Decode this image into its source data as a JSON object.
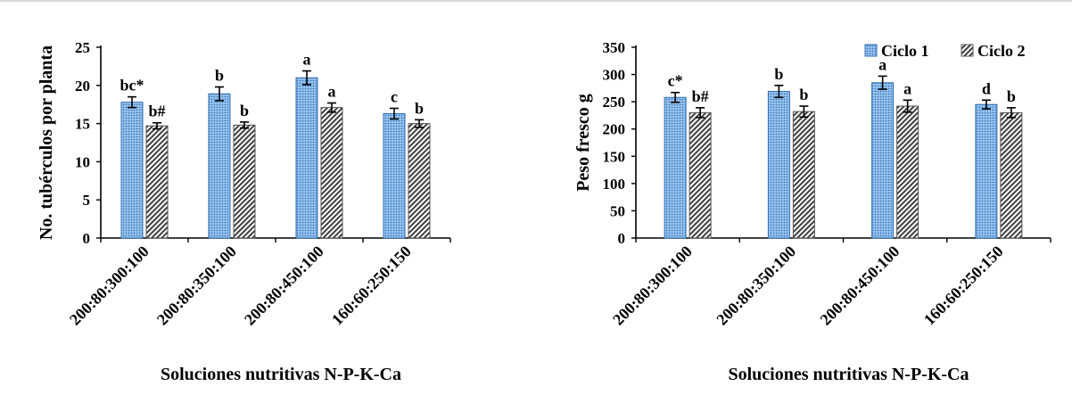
{
  "colors": {
    "ciclo1_fill": "#7fb2e6",
    "ciclo1_edge": "#2f6fb0",
    "ciclo2_hatch": "#404040",
    "axis": "#000000"
  },
  "chart_data": [
    {
      "type": "bar",
      "ylabel": "No. tubérculos por planta",
      "xlabel": "Soluciones nutritivas N-P-K-Ca",
      "categories": [
        "200:80:300:100",
        "200:80:350:100",
        "200:80:450:100",
        "160:60:250:150"
      ],
      "ylim": [
        0,
        25
      ],
      "yticks": [
        0,
        5,
        10,
        15,
        20,
        25
      ],
      "series": [
        {
          "values": [
            17.8,
            18.9,
            21.0,
            16.3
          ],
          "errors": [
            0.7,
            0.9,
            0.9,
            0.7
          ],
          "labels": [
            "bc*",
            "b",
            "a",
            "c"
          ],
          "pattern": "dots"
        },
        {
          "values": [
            14.7,
            14.8,
            17.1,
            15.0
          ],
          "errors": [
            0.4,
            0.4,
            0.6,
            0.5
          ],
          "labels": [
            "b#",
            "b",
            "a",
            "b"
          ],
          "pattern": "hatch"
        }
      ],
      "legend": false
    },
    {
      "type": "bar",
      "ylabel": "Peso fresco g",
      "xlabel": "Soluciones nutritivas N-P-K-Ca",
      "categories": [
        "200:80:300:100",
        "200:80:350:100",
        "200:80:450:100",
        "160:60:250:150"
      ],
      "ylim": [
        0,
        350
      ],
      "yticks": [
        0,
        50,
        100,
        150,
        200,
        250,
        300,
        350
      ],
      "series": [
        {
          "name": "Ciclo 1",
          "values": [
            258,
            269,
            285,
            245
          ],
          "errors": [
            9,
            11,
            12,
            8
          ],
          "labels": [
            "c*",
            "b",
            "a",
            "d"
          ],
          "pattern": "dots"
        },
        {
          "name": "Ciclo 2",
          "values": [
            230,
            232,
            242,
            230
          ],
          "errors": [
            9,
            10,
            11,
            9
          ],
          "labels": [
            "b#",
            "b",
            "a",
            "b"
          ],
          "pattern": "hatch"
        }
      ],
      "legend": true,
      "legend_position": "top-right"
    }
  ]
}
